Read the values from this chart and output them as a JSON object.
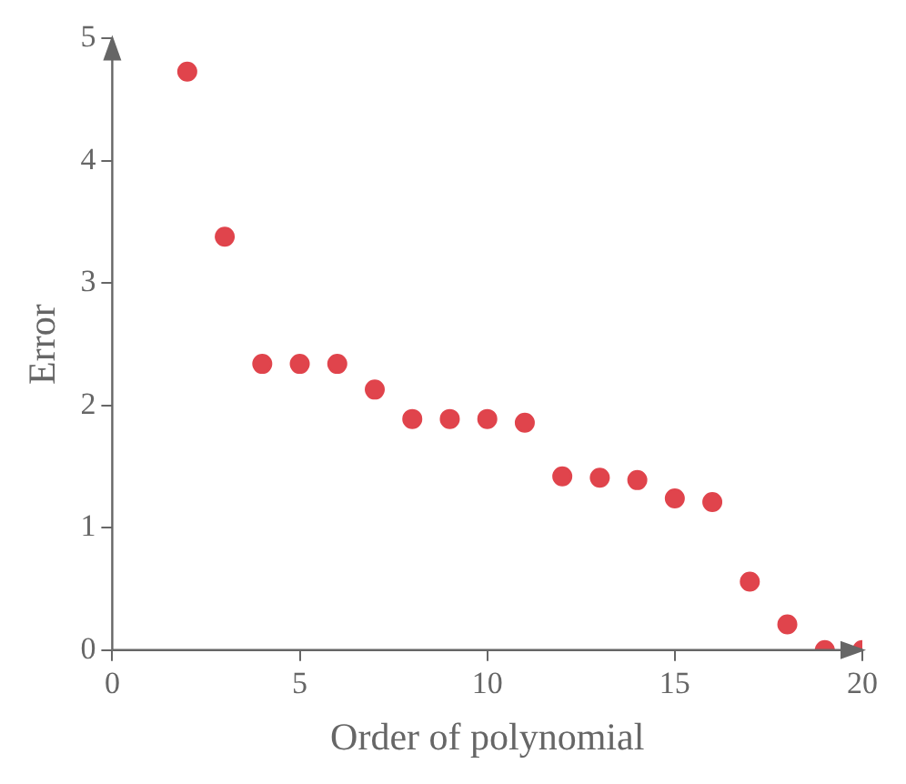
{
  "chart_data": {
    "type": "scatter",
    "xlabel": "Order of polynomial",
    "ylabel": "Error",
    "x": [
      2,
      3,
      4,
      5,
      6,
      7,
      8,
      9,
      10,
      11,
      12,
      13,
      14,
      15,
      16,
      17,
      18,
      19,
      20
    ],
    "series": [
      {
        "color": "#e0444c",
        "values": [
          4.73,
          3.38,
          2.34,
          2.34,
          2.34,
          2.13,
          1.89,
          1.89,
          1.89,
          1.86,
          1.42,
          1.41,
          1.39,
          1.24,
          1.21,
          0.56,
          0.21,
          0,
          0
        ]
      }
    ],
    "xlim": [
      0,
      20
    ],
    "ylim": [
      0,
      5
    ],
    "xticks": [
      0,
      5,
      10,
      15,
      20
    ],
    "yticks": [
      0,
      1,
      2,
      3,
      4,
      5
    ],
    "grid": false,
    "legend": false,
    "marker": "circle"
  }
}
